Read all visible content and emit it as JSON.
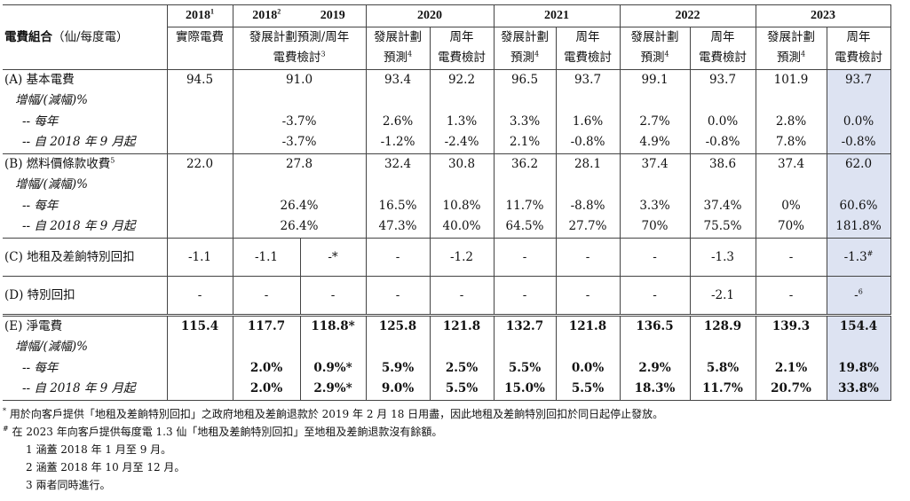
{
  "header": {
    "row1": {
      "c2018a": "2018",
      "c2018a_sup": "1",
      "c2018b": "2018",
      "c2018b_sup": "2",
      "c2019": "2019",
      "c2020": "2020",
      "c2021": "2021",
      "c2022": "2022",
      "c2023": "2023"
    },
    "title": "電費組合",
    "unit": "（仙/每度電）",
    "actual": "實際電費",
    "plan_review_l1": "發展計劃預測/周年",
    "plan_review_l2": "電費檢討",
    "plan_review_sup": "3",
    "plan_l1": "發展計劃",
    "plan_l2": "預測",
    "plan_sup": "4",
    "review_l1": "周年",
    "review_l2": "電費檢討"
  },
  "sections": {
    "A": {
      "label": "(A) 基本電費",
      "values": [
        "94.5",
        "91.0",
        "93.4",
        "92.2",
        "96.5",
        "93.7",
        "99.1",
        "93.7",
        "101.9",
        "93.7"
      ],
      "change_label": "增幅/(減幅)%",
      "yearly_label": "-- 每年",
      "yearly": [
        "-3.7%",
        "2.6%",
        "1.3%",
        "3.3%",
        "1.6%",
        "2.7%",
        "0.0%",
        "2.8%",
        "0.0%"
      ],
      "since_label": "-- 自 2018 年 9 月起",
      "since": [
        "-3.7%",
        "-1.2%",
        "-2.4%",
        "2.1%",
        "-0.8%",
        "4.9%",
        "-0.8%",
        "7.8%",
        "-0.8%"
      ]
    },
    "B": {
      "label": "(B) 燃料價條款收費",
      "label_sup": "5",
      "values": [
        "22.0",
        "27.8",
        "32.4",
        "30.8",
        "36.2",
        "28.1",
        "37.4",
        "38.6",
        "37.4",
        "62.0"
      ],
      "change_label": "增幅/(減幅)%",
      "yearly_label": "-- 每年",
      "yearly": [
        "26.4%",
        "16.5%",
        "10.8%",
        "11.7%",
        "-8.8%",
        "3.3%",
        "37.4%",
        "0%",
        "60.6%"
      ],
      "since_label": "-- 自 2018 年 9 月起",
      "since": [
        "26.4%",
        "47.3%",
        "40.0%",
        "64.5%",
        "27.7%",
        "70%",
        "75.5%",
        "70%",
        "181.8%"
      ]
    },
    "C": {
      "label": "(C) 地租及差餉特別回扣",
      "values": [
        "-1.1",
        "-1.1",
        "-*",
        "-",
        "-1.2",
        "-",
        "-",
        "-",
        "-1.3",
        "-",
        "-1.3"
      ],
      "last_sup": "#"
    },
    "D": {
      "label": "(D) 特別回扣",
      "values": [
        "-",
        "-",
        "-",
        "-",
        "-",
        "-",
        "-",
        "-",
        "-2.1",
        "-",
        "-"
      ],
      "last_sup": "6"
    },
    "E": {
      "label": "(E) 淨電費",
      "values": [
        "115.4",
        "117.7",
        "118.8*",
        "125.8",
        "121.8",
        "132.7",
        "121.8",
        "136.5",
        "128.9",
        "139.3",
        "154.4"
      ],
      "change_label": "增幅/(減幅)%",
      "yearly_label": "-- 每年",
      "yearly": [
        "2.0%",
        "0.9%*",
        "5.9%",
        "2.5%",
        "5.5%",
        "0.0%",
        "2.9%",
        "5.8%",
        "2.1%",
        "19.8%"
      ],
      "since_label": "-- 自 2018 年 9 月起",
      "since": [
        "2.0%",
        "2.9%*",
        "9.0%",
        "5.5%",
        "15.0%",
        "5.5%",
        "18.3%",
        "11.7%",
        "20.7%",
        "33.8%"
      ]
    }
  },
  "notes": {
    "star_mark": "*",
    "star": "用於向客戶提供「地租及差餉特別回扣」之政府地租及差餉退款於 2019 年 2 月 18 日用盡，因此地租及差餉特別回扣於同日起停止發放。",
    "hash_mark": "#",
    "hash": "在 2023 年向客戶提供每度電 1.3 仙「地租及差餉特別回扣」至地租及差餉退款沒有餘額。",
    "n1": "1 涵蓋 2018 年 1 月至 9 月。",
    "n2": "2 涵蓋 2018 年 10 月至 12 月。",
    "n3": "3 兩者同時進行。"
  },
  "colors": {
    "highlight": "#dde3f2",
    "border": "#444444"
  }
}
